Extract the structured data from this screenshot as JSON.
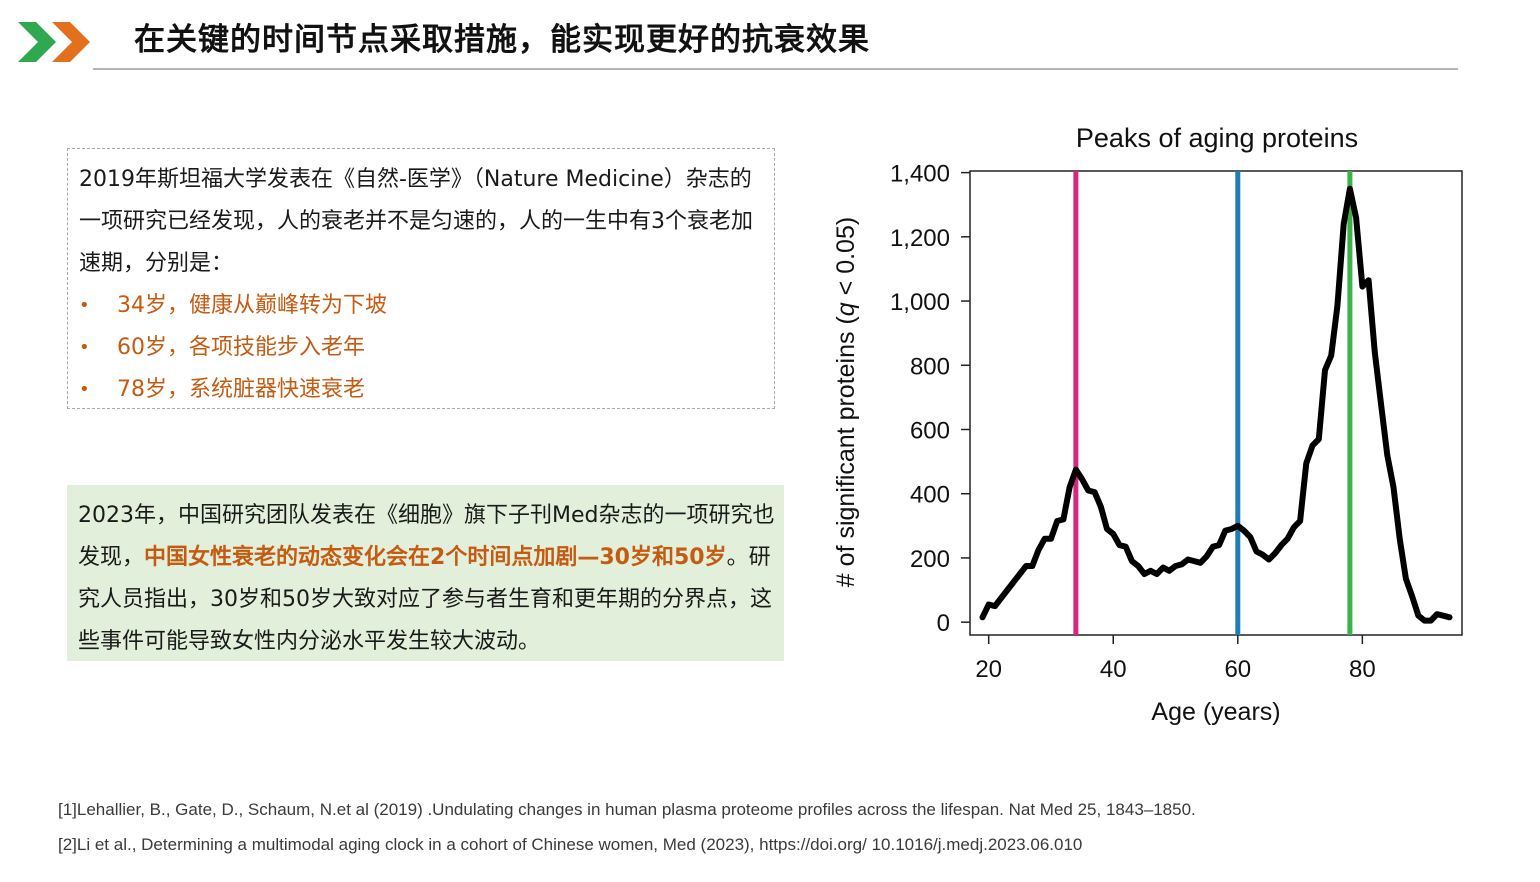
{
  "header": {
    "title": "在关键的时间节点采取措施，能实现更好的抗衰效果",
    "logo_colors": {
      "green": "#2fa84f",
      "orange": "#e2701d"
    }
  },
  "box1": {
    "text": "2019年斯坦福大学发表在《自然-医学》（Nature Medicine）杂志的一项研究已经发现，人的衰老并不是匀速的，人的一生中有3个衰老加速期，分别是：",
    "bullets": [
      "34岁，健康从巅峰转为下坡",
      "60岁，各项技能步入老年",
      "78岁，系统脏器快速衰老"
    ],
    "bullet_color": "#c55a11"
  },
  "box2": {
    "text_before": "2023年，中国研究团队发表在《细胞》旗下子刊Med杂志的一项研究也发现，",
    "highlight": "中国女性衰老的动态变化会在2个时间点加剧—30岁和50岁",
    "text_after": "。研究人员指出，30岁和50岁大致对应了参与者生育和更年期的分界点，这些事件可能导致女性内分泌水平发生较大波动。",
    "background": "#e2efda"
  },
  "chart_data": {
    "type": "line",
    "title": "Peaks of aging proteins",
    "xlabel": "Age (years)",
    "ylabel_prefix": "# of significant proteins (",
    "ylabel_italic": "q",
    "ylabel_suffix": " < 0.05)",
    "xlim": [
      17,
      96
    ],
    "ylim": [
      -40,
      1405
    ],
    "xticks": [
      20,
      40,
      60,
      80
    ],
    "yticks": [
      0,
      200,
      400,
      600,
      800,
      1000,
      1200,
      1400
    ],
    "ytick_labels": [
      "0",
      "200",
      "400",
      "600",
      "800",
      "1,000",
      "1,200",
      "1,400"
    ],
    "grid": false,
    "vlines": [
      {
        "x": 34,
        "color": "#d6287e"
      },
      {
        "x": 60,
        "color": "#1f7fb5"
      },
      {
        "x": 78,
        "color": "#39b24a"
      }
    ],
    "series": [
      {
        "color": "#000000",
        "points": [
          [
            19,
            15
          ],
          [
            20,
            55
          ],
          [
            21,
            50
          ],
          [
            22,
            75
          ],
          [
            23,
            100
          ],
          [
            24,
            125
          ],
          [
            25,
            150
          ],
          [
            26,
            175
          ],
          [
            27,
            175
          ],
          [
            28,
            225
          ],
          [
            29,
            260
          ],
          [
            30,
            260
          ],
          [
            31,
            315
          ],
          [
            32,
            320
          ],
          [
            33,
            420
          ],
          [
            34,
            475
          ],
          [
            35,
            445
          ],
          [
            36,
            410
          ],
          [
            37,
            405
          ],
          [
            38,
            360
          ],
          [
            39,
            290
          ],
          [
            40,
            275
          ],
          [
            41,
            240
          ],
          [
            42,
            235
          ],
          [
            43,
            190
          ],
          [
            44,
            175
          ],
          [
            45,
            150
          ],
          [
            46,
            160
          ],
          [
            47,
            150
          ],
          [
            48,
            170
          ],
          [
            49,
            160
          ],
          [
            50,
            175
          ],
          [
            51,
            180
          ],
          [
            52,
            195
          ],
          [
            53,
            190
          ],
          [
            54,
            185
          ],
          [
            55,
            205
          ],
          [
            56,
            235
          ],
          [
            57,
            240
          ],
          [
            58,
            285
          ],
          [
            59,
            290
          ],
          [
            60,
            300
          ],
          [
            61,
            285
          ],
          [
            62,
            265
          ],
          [
            63,
            220
          ],
          [
            64,
            210
          ],
          [
            65,
            195
          ],
          [
            66,
            215
          ],
          [
            67,
            240
          ],
          [
            68,
            260
          ],
          [
            69,
            295
          ],
          [
            70,
            315
          ],
          [
            71,
            495
          ],
          [
            72,
            550
          ],
          [
            73,
            570
          ],
          [
            74,
            785
          ],
          [
            75,
            830
          ],
          [
            76,
            985
          ],
          [
            77,
            1240
          ],
          [
            78,
            1350
          ],
          [
            79,
            1260
          ],
          [
            80,
            1045
          ],
          [
            81,
            1065
          ],
          [
            82,
            840
          ],
          [
            83,
            680
          ],
          [
            84,
            520
          ],
          [
            85,
            420
          ],
          [
            86,
            260
          ],
          [
            87,
            135
          ],
          [
            88,
            80
          ],
          [
            89,
            20
          ],
          [
            90,
            5
          ],
          [
            91,
            5
          ],
          [
            92,
            25
          ],
          [
            93,
            20
          ],
          [
            94,
            15
          ]
        ]
      }
    ]
  },
  "references": [
    "[1]Lehallier, B., Gate, D., Schaum, N.et al (2019) .Undulating changes in human plasma proteome profiles across the lifespan. Nat Med 25, 1843–1850.",
    "[2]Li et al., Determining a multimodal aging clock in a cohort of Chinese women, Med (2023), https://doi.org/ 10.1016/j.medj.2023.06.010"
  ]
}
